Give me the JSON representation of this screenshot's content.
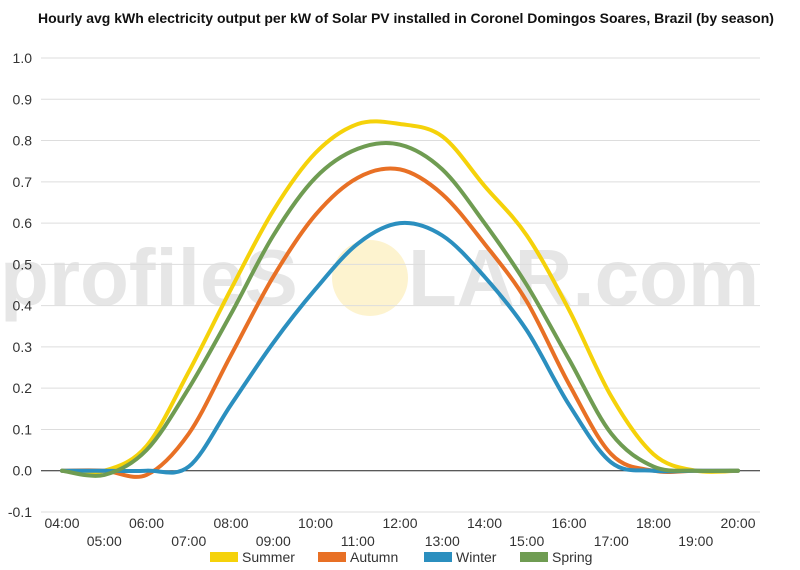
{
  "chart_data": {
    "type": "line",
    "title": "Hourly avg kWh electricity output per kW of Solar PV installed in Coronel Domingos Soares, Brazil (by season)",
    "xlabel": "",
    "ylabel": "",
    "ylim": [
      -0.1,
      1.0
    ],
    "yticks": [
      "-0.1",
      "0.0",
      "0.1",
      "0.2",
      "0.3",
      "0.4",
      "0.5",
      "0.6",
      "0.7",
      "0.8",
      "0.9",
      "1.0"
    ],
    "x": [
      "04:00",
      "05:00",
      "06:00",
      "07:00",
      "08:00",
      "09:00",
      "10:00",
      "11:00",
      "12:00",
      "13:00",
      "14:00",
      "15:00",
      "16:00",
      "17:00",
      "18:00",
      "19:00",
      "20:00"
    ],
    "grid": true,
    "legend": "bottom",
    "series": [
      {
        "name": "Summer",
        "color": "#f5d20a",
        "values": [
          0.0,
          0.0,
          0.06,
          0.24,
          0.44,
          0.63,
          0.77,
          0.84,
          0.84,
          0.81,
          0.69,
          0.57,
          0.39,
          0.18,
          0.04,
          0.0,
          0.0
        ]
      },
      {
        "name": "Autumn",
        "color": "#e87025",
        "values": [
          0.0,
          0.0,
          -0.01,
          0.09,
          0.28,
          0.47,
          0.62,
          0.71,
          0.73,
          0.67,
          0.55,
          0.41,
          0.21,
          0.04,
          0.0,
          0.0,
          0.0
        ]
      },
      {
        "name": "Winter",
        "color": "#2b8fbf",
        "values": [
          0.0,
          0.0,
          0.0,
          0.01,
          0.16,
          0.31,
          0.44,
          0.55,
          0.6,
          0.57,
          0.47,
          0.34,
          0.16,
          0.02,
          0.0,
          0.0,
          0.0
        ]
      },
      {
        "name": "Spring",
        "color": "#6f9c52",
        "values": [
          0.0,
          -0.01,
          0.05,
          0.2,
          0.38,
          0.57,
          0.71,
          0.78,
          0.79,
          0.73,
          0.6,
          0.45,
          0.27,
          0.09,
          0.01,
          0.0,
          0.0
        ]
      }
    ],
    "watermark": {
      "text_left": "profileS",
      "text_right": "LAR.com"
    }
  }
}
